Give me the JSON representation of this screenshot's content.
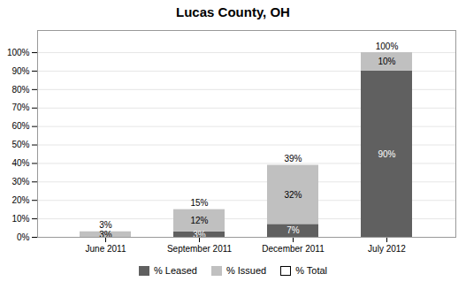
{
  "chart_data": {
    "type": "bar",
    "title": "Lucas County, OH",
    "categories": [
      "June 2011",
      "September 2011",
      "December 2011",
      "July 2012"
    ],
    "stacked": true,
    "data_labels": true,
    "grid": true,
    "legend": "bottom",
    "series": [
      {
        "name": "% Leased",
        "color": "#606060",
        "values": [
          0,
          3,
          7,
          90
        ],
        "value_labels": [
          null,
          "3%",
          "7%",
          "90%"
        ]
      },
      {
        "name": "% Issued",
        "color": "#c0c0c0",
        "values": [
          3,
          12,
          32,
          10
        ],
        "value_labels": [
          "3%",
          "12%",
          "32%",
          "10%"
        ]
      },
      {
        "name": "% Total",
        "type": "text",
        "color": "#ffffff",
        "values": [
          3,
          15,
          39,
          100
        ],
        "value_labels": [
          "3%",
          "15%",
          "39%",
          "100%"
        ]
      }
    ],
    "ylim": [
      0,
      112
    ],
    "yticks": [
      {
        "value": 0,
        "label": "0%"
      },
      {
        "value": 10,
        "label": "10%"
      },
      {
        "value": 20,
        "label": "20%"
      },
      {
        "value": 30,
        "label": "30%"
      },
      {
        "value": 40,
        "label": "40%"
      },
      {
        "value": 50,
        "label": "50%"
      },
      {
        "value": 60,
        "label": "60%"
      },
      {
        "value": 70,
        "label": "70%"
      },
      {
        "value": 80,
        "label": "80%"
      },
      {
        "value": 90,
        "label": "90%"
      },
      {
        "value": 100,
        "label": "100%"
      }
    ]
  }
}
